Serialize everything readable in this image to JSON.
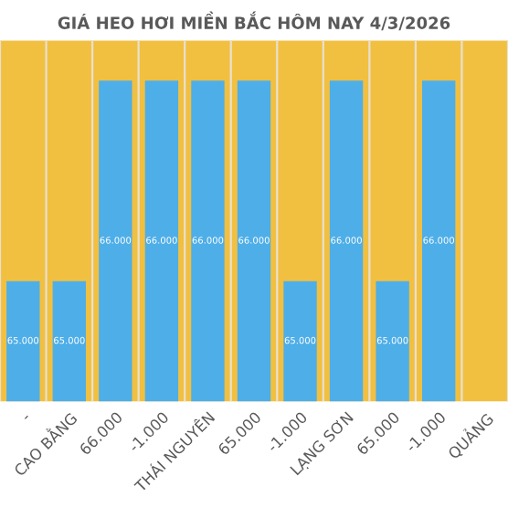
{
  "chart_data": {
    "type": "bar",
    "title": "GIÁ HEO HƠI MIỀN BẮC HÔM NAY 4/3/2026",
    "categories": [
      "-",
      "CAO BẰNG",
      "66.000",
      "-1.000",
      "THÁI NGUYÊN",
      "65.000",
      "-1.000",
      "LẠNG SƠN",
      "65.000",
      "-1.000",
      "QUẢNG"
    ],
    "series": [
      {
        "color": "#4eaee8",
        "values": [
          65000,
          65000,
          66000,
          66000,
          66000,
          66000,
          65000,
          66000,
          65000,
          66000,
          null
        ],
        "value_labels": [
          "65.000",
          "65.000",
          "66.000",
          "66.000",
          "66.000",
          "66.000",
          "65.000",
          "66.000",
          "65.000",
          "66.000",
          null
        ]
      }
    ],
    "ylim": [
      64400,
      66200
    ],
    "tick_labels": "x",
    "grid": "x"
  }
}
